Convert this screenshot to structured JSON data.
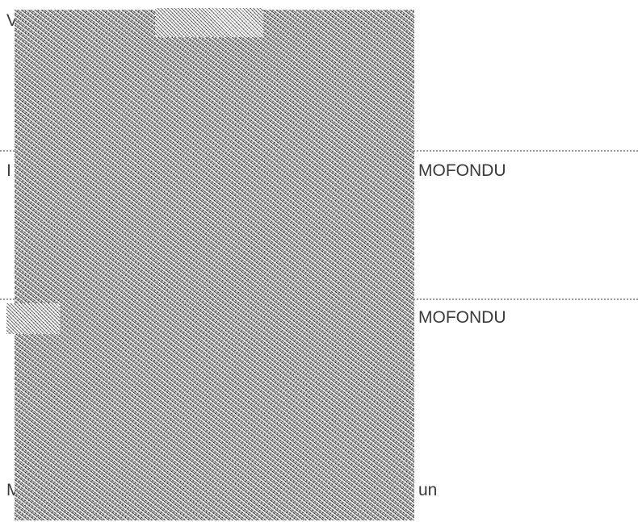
{
  "rows": [
    {
      "label_left": "V",
      "label_right": ""
    },
    {
      "label_left": "I",
      "label_right": "MOFONDU"
    },
    {
      "label_left": "",
      "label_right": "MOFONDU"
    },
    {
      "label_left": "M",
      "label_right": "un"
    }
  ]
}
